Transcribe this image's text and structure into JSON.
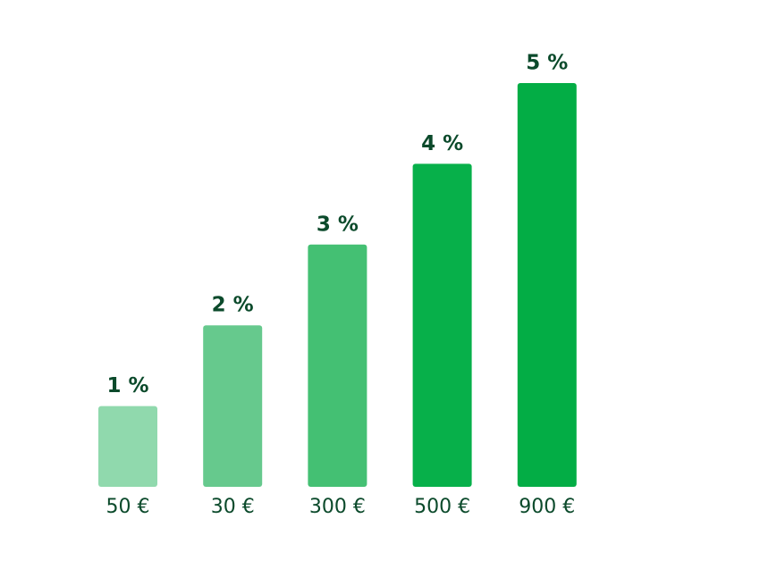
{
  "chart_data": {
    "type": "bar",
    "categories": [
      "50 €",
      "30 €",
      "300 €",
      "500 €",
      "900 €"
    ],
    "values": [
      1,
      2,
      3,
      4,
      5
    ],
    "value_labels": [
      "1 %",
      "2 %",
      "3 %",
      "4 %",
      "5 %"
    ],
    "colors": [
      "#90d9ad",
      "#66c98d",
      "#44c073",
      "#07b04a",
      "#03ad45"
    ]
  }
}
